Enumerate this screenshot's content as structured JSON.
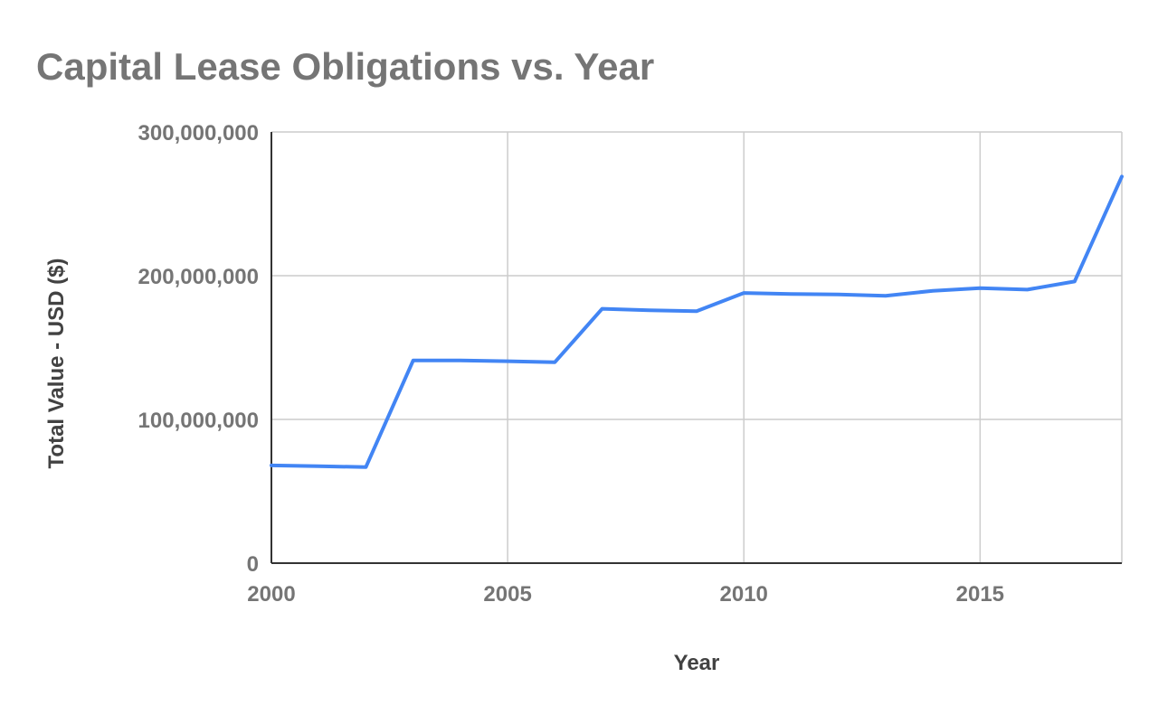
{
  "chart_data": {
    "type": "line",
    "title": "Capital Lease Obligations vs. Year",
    "xlabel": "Year",
    "ylabel": "Total Value - USD ($)",
    "xlim": [
      2000,
      2018
    ],
    "ylim": [
      0,
      300000000
    ],
    "x_ticks": [
      2000,
      2005,
      2010,
      2015
    ],
    "x_tick_labels": [
      "2000",
      "2005",
      "2010",
      "2015"
    ],
    "y_ticks": [
      0,
      100000000,
      200000000,
      300000000
    ],
    "y_tick_labels": [
      "0",
      "100,000,000",
      "200,000,000",
      "300,000,000"
    ],
    "grid": true,
    "legend": "none",
    "colors": {
      "line": "#4285f4",
      "grid": "#cccccc",
      "axis": "#333333"
    },
    "series": [
      {
        "x": [
          2000,
          2001,
          2002,
          2003,
          2004,
          2005,
          2006,
          2007,
          2008,
          2009,
          2010,
          2011,
          2012,
          2013,
          2014,
          2015,
          2016,
          2017,
          2018
        ],
        "values": [
          68000000,
          67500000,
          66800000,
          141000000,
          141000000,
          140500000,
          139800000,
          177000000,
          176000000,
          175300000,
          188000000,
          187300000,
          187000000,
          186000000,
          189500000,
          191300000,
          190300000,
          196000000,
          269000000
        ]
      }
    ]
  }
}
